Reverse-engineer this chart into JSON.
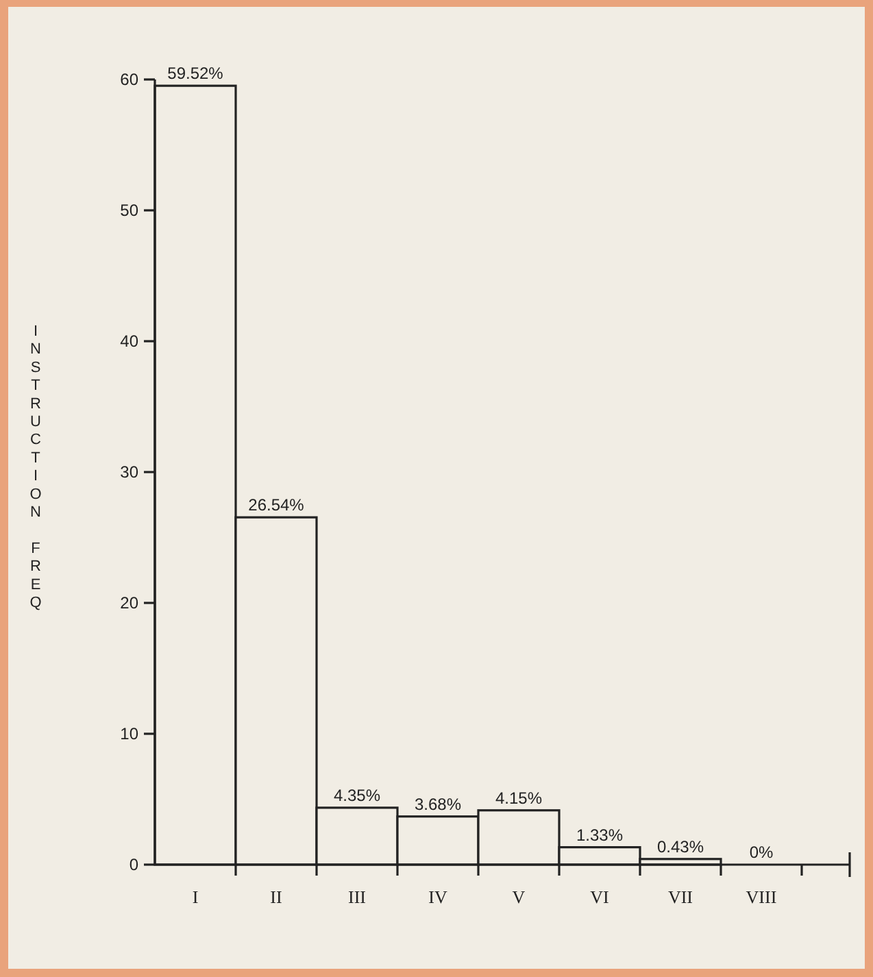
{
  "chart_data": {
    "type": "bar",
    "ylabel": "INSTRUCTION FREQ",
    "categories": [
      "I",
      "II",
      "III",
      "IV",
      "V",
      "VI",
      "VII",
      "VIII"
    ],
    "values": [
      59.52,
      26.54,
      4.35,
      3.68,
      4.15,
      1.33,
      0.43,
      0
    ],
    "value_labels": [
      "59.52%",
      "26.54%",
      "4.35%",
      "3.68%",
      "4.15%",
      "1.33%",
      "0.43%",
      "0%"
    ],
    "color": "#f1ede4",
    "ylim": [
      0,
      60
    ],
    "yticks": [
      0,
      10,
      20,
      30,
      40,
      50,
      60
    ],
    "grid": false
  }
}
